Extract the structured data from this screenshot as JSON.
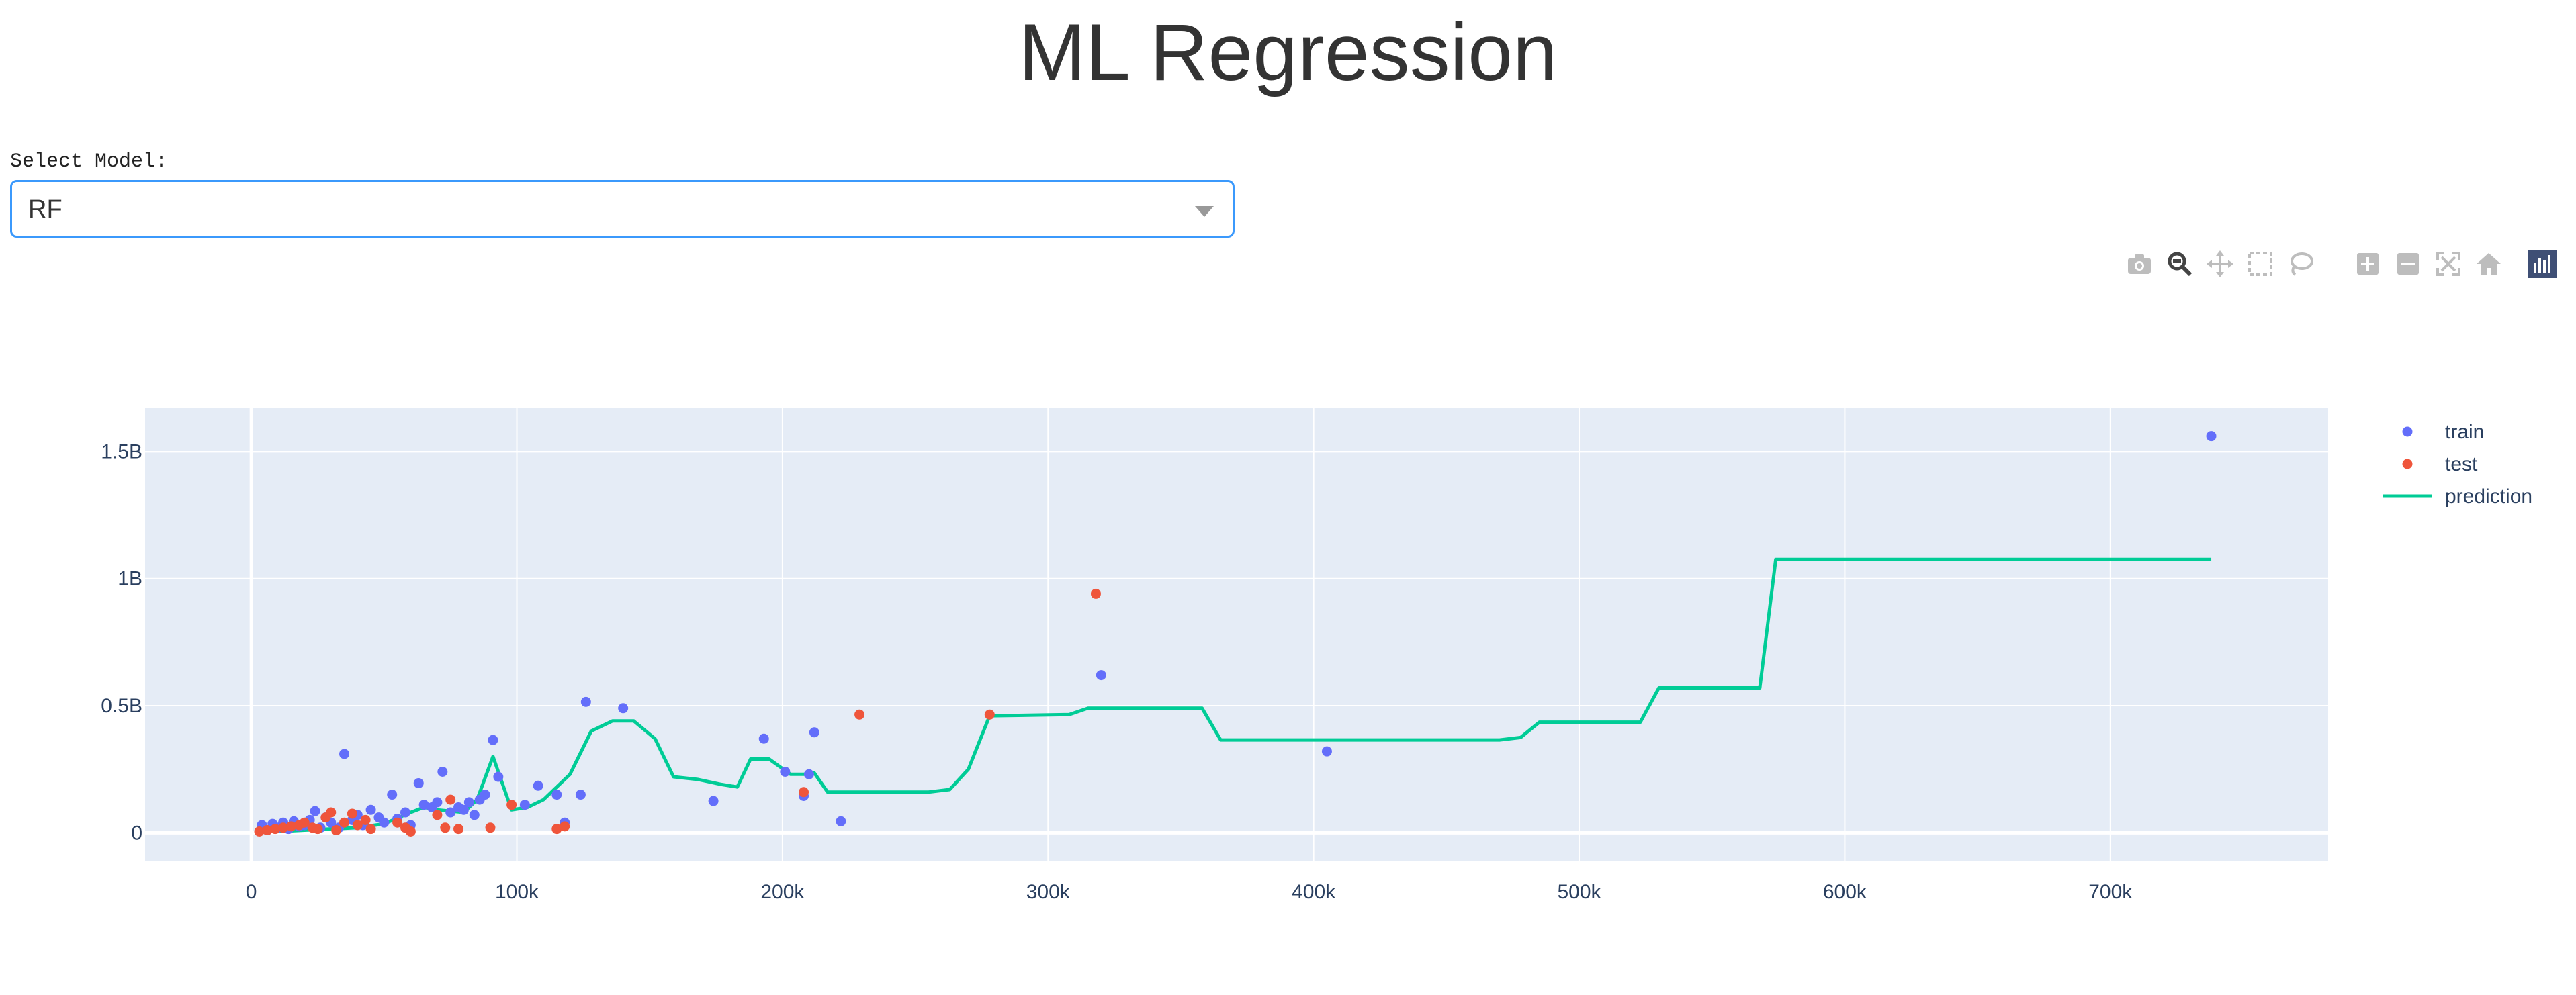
{
  "page": {
    "title": "ML Regression"
  },
  "controls": {
    "select_label": "Select Model:",
    "selected_model": "RF"
  },
  "modebar": {
    "icons": [
      "camera-icon",
      "zoom-icon",
      "pan-icon",
      "box-select-icon",
      "lasso-select-icon",
      "zoom-in-icon",
      "zoom-out-icon",
      "autoscale-icon",
      "reset-axes-icon",
      "plotly-logo-icon"
    ]
  },
  "colors": {
    "train": "#636efa",
    "test": "#ef553b",
    "prediction": "#00cc96",
    "plot_bg": "#e5ecf6",
    "grid": "#ffffff"
  },
  "chart_data": {
    "type": "scatter",
    "title": "",
    "xlabel": "",
    "ylabel": "",
    "xlim": [
      -40000,
      782000
    ],
    "ylim": [
      -110000000,
      1670000000
    ],
    "x_ticks": [
      0,
      100000,
      200000,
      300000,
      400000,
      500000,
      600000,
      700000
    ],
    "x_tick_labels": [
      "0",
      "100k",
      "200k",
      "300k",
      "400k",
      "500k",
      "600k",
      "700k"
    ],
    "y_ticks": [
      0,
      500000000,
      1000000000,
      1500000000
    ],
    "y_tick_labels": [
      "0",
      "0.5B",
      "1B",
      "1.5B"
    ],
    "grid": true,
    "legend_position": "top-right",
    "series": [
      {
        "name": "train",
        "mode": "markers",
        "x": [
          4000,
          6000,
          8000,
          10000,
          12000,
          14000,
          16000,
          18000,
          20000,
          22000,
          24000,
          26000,
          28000,
          30000,
          33000,
          35000,
          38000,
          40000,
          42000,
          45000,
          48000,
          50000,
          53000,
          55000,
          58000,
          60000,
          63000,
          65000,
          68000,
          70000,
          72000,
          75000,
          78000,
          80000,
          82000,
          84000,
          86000,
          88000,
          91000,
          93000,
          103000,
          108000,
          115000,
          118000,
          124000,
          126000,
          140000,
          174000,
          193000,
          201000,
          208000,
          210000,
          212000,
          222000,
          320000,
          405000,
          738000
        ],
        "y": [
          30000000,
          10000000,
          35000000,
          20000000,
          40000000,
          15000000,
          45000000,
          25000000,
          30000000,
          50000000,
          85000000,
          20000000,
          60000000,
          40000000,
          20000000,
          310000000,
          50000000,
          70000000,
          30000000,
          90000000,
          60000000,
          40000000,
          150000000,
          55000000,
          80000000,
          30000000,
          195000000,
          110000000,
          100000000,
          120000000,
          240000000,
          80000000,
          100000000,
          90000000,
          120000000,
          70000000,
          130000000,
          150000000,
          365000000,
          220000000,
          110000000,
          185000000,
          150000000,
          40000000,
          150000000,
          515000000,
          490000000,
          125000000,
          370000000,
          240000000,
          145000000,
          230000000,
          395000000,
          45000000,
          620000000,
          320000000,
          1560000000
        ]
      },
      {
        "name": "test",
        "mode": "markers",
        "x": [
          3000,
          6000,
          9000,
          12000,
          15000,
          18000,
          20000,
          23000,
          25000,
          28000,
          30000,
          32000,
          35000,
          38000,
          40000,
          43000,
          45000,
          55000,
          58000,
          60000,
          70000,
          73000,
          75000,
          78000,
          90000,
          98000,
          115000,
          118000,
          208000,
          229000,
          278000,
          318000
        ],
        "y": [
          5000000,
          10000000,
          15000000,
          20000000,
          25000000,
          30000000,
          40000000,
          20000000,
          15000000,
          60000000,
          80000000,
          10000000,
          40000000,
          75000000,
          30000000,
          50000000,
          15000000,
          40000000,
          20000000,
          5000000,
          70000000,
          20000000,
          130000000,
          15000000,
          20000000,
          110000000,
          15000000,
          25000000,
          160000000,
          465000000,
          465000000,
          940000000
        ]
      },
      {
        "name": "prediction",
        "mode": "lines",
        "x": [
          2000,
          10000,
          20000,
          30000,
          40000,
          50000,
          60000,
          65000,
          70000,
          80000,
          85000,
          91000,
          98000,
          104000,
          110000,
          120000,
          128000,
          136000,
          144000,
          152000,
          159000,
          168000,
          177000,
          183000,
          188000,
          195000,
          203000,
          208000,
          212000,
          217000,
          230000,
          255000,
          263000,
          270000,
          278000,
          308000,
          315000,
          358000,
          365000,
          470000,
          478000,
          485000,
          523000,
          530000,
          568000,
          574000,
          738000
        ],
        "y": [
          5000000,
          5000000,
          10000000,
          15000000,
          20000000,
          35000000,
          80000000,
          100000000,
          90000000,
          80000000,
          130000000,
          300000000,
          90000000,
          100000000,
          130000000,
          230000000,
          400000000,
          440000000,
          440000000,
          370000000,
          220000000,
          210000000,
          190000000,
          180000000,
          290000000,
          290000000,
          230000000,
          230000000,
          235000000,
          160000000,
          160000000,
          160000000,
          170000000,
          250000000,
          460000000,
          465000000,
          490000000,
          490000000,
          365000000,
          365000000,
          375000000,
          435000000,
          435000000,
          570000000,
          570000000,
          1075000000,
          1075000000
        ]
      }
    ]
  }
}
